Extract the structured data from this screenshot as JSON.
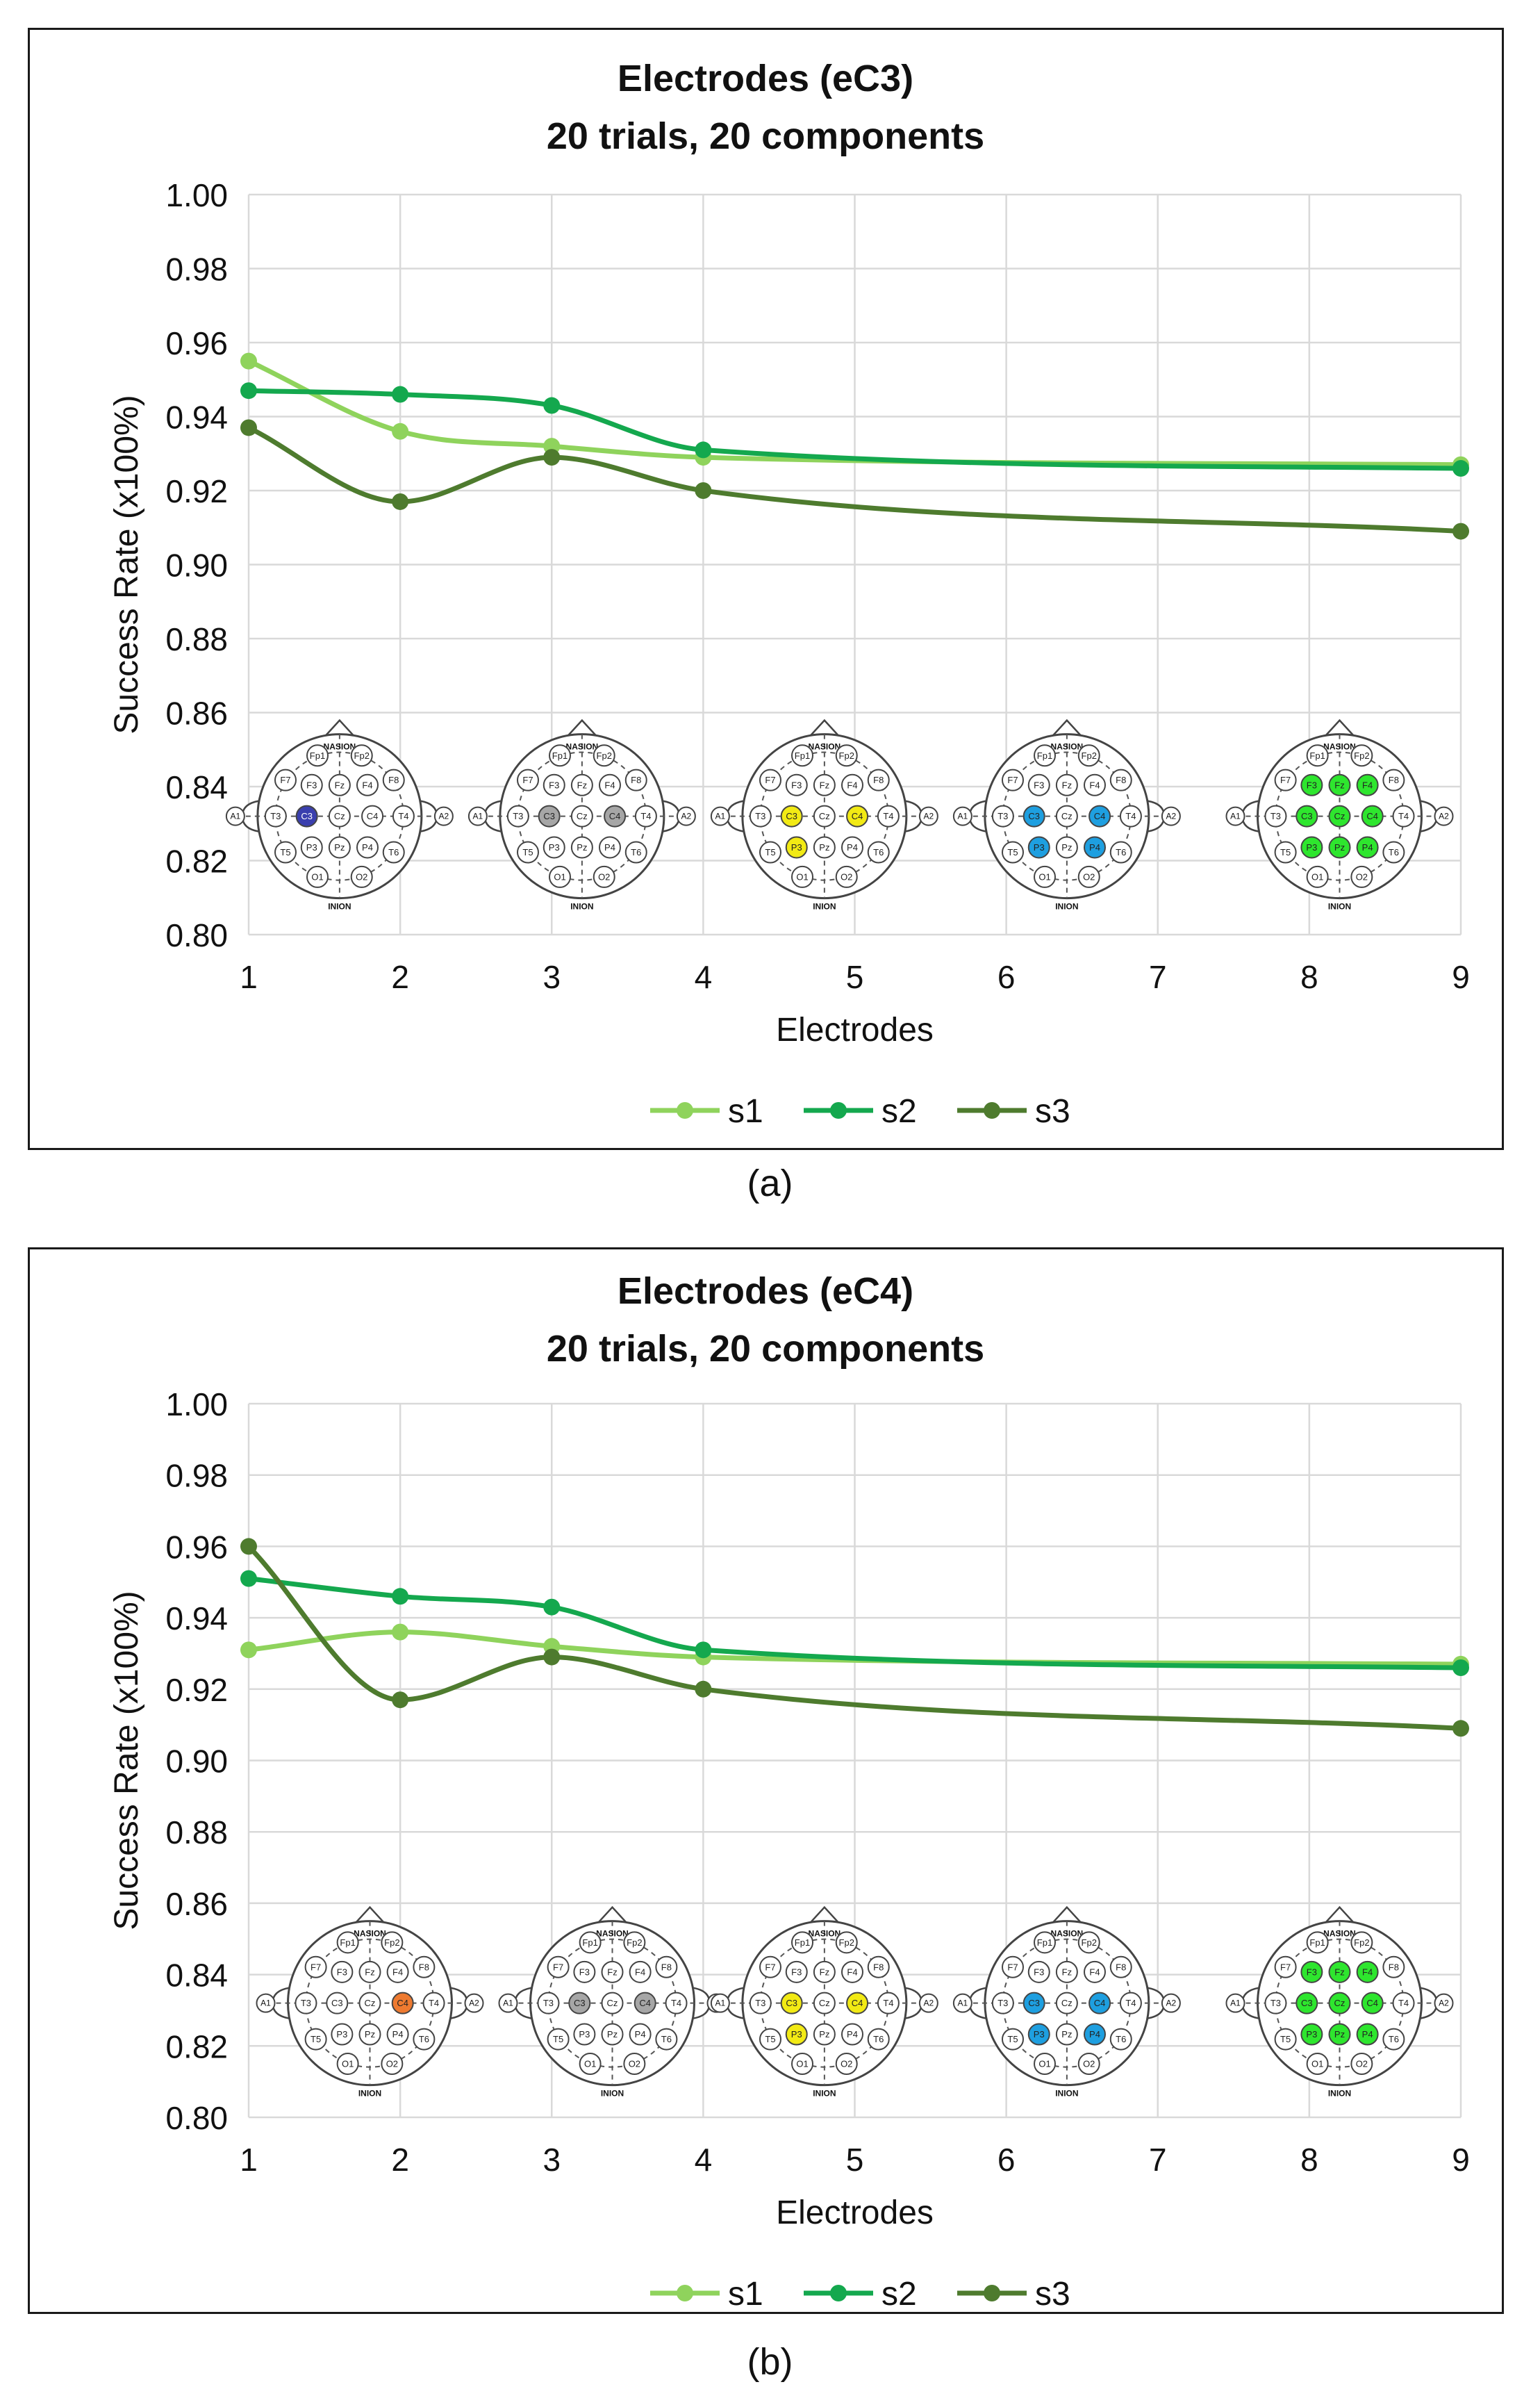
{
  "legend_colors": {
    "s1": "#8fd35c",
    "s2": "#14a84e",
    "s3": "#4e7b2e"
  },
  "electrode_colors": [
    "#3a3fae",
    "#a6a6a6",
    "#f2ea14",
    "#1e9fe0",
    "#2ee62e",
    "#ee7a30"
  ],
  "head_labels": {
    "top": "NASION",
    "bottom": "INION",
    "sites": [
      "Fp1",
      "Fp2",
      "F7",
      "F3",
      "Fz",
      "F4",
      "F8",
      "A1",
      "T3",
      "C3",
      "Cz",
      "C4",
      "T4",
      "A2",
      "T5",
      "P3",
      "Pz",
      "P4",
      "T6",
      "O1",
      "O2"
    ]
  },
  "chart_data": [
    {
      "type": "line",
      "title": "Electrodes (eC3)",
      "subtitle": "20 trials, 20 components",
      "xlabel": "Electrodes",
      "ylabel": "Success Rate (x100%)",
      "caption": "(a)",
      "x_ticks": [
        "1",
        "2",
        "3",
        "4",
        "5",
        "6",
        "7",
        "8",
        "9"
      ],
      "xlim": [
        1,
        9
      ],
      "ylim": [
        0.8,
        1.0
      ],
      "y_ticks": [
        "0.80",
        "0.82",
        "0.84",
        "0.86",
        "0.88",
        "0.90",
        "0.92",
        "0.94",
        "0.96",
        "0.98",
        "1.00"
      ],
      "grid": true,
      "legend_position": "bottom",
      "series": [
        {
          "name": "s1",
          "x": [
            1,
            2,
            3,
            4,
            9
          ],
          "values": [
            0.955,
            0.936,
            0.932,
            0.929,
            0.927
          ]
        },
        {
          "name": "s2",
          "x": [
            1,
            2,
            3,
            4,
            9
          ],
          "values": [
            0.947,
            0.946,
            0.943,
            0.931,
            0.926
          ]
        },
        {
          "name": "s3",
          "x": [
            1,
            2,
            3,
            4,
            9
          ],
          "values": [
            0.937,
            0.917,
            0.929,
            0.92,
            0.909
          ]
        }
      ],
      "head_diagrams": [
        {
          "x": 1.6,
          "highlight": [
            "C3"
          ],
          "color": "#3a3fae"
        },
        {
          "x": 3.2,
          "highlight": [
            "C3",
            "C4"
          ],
          "color": "#a6a6a6"
        },
        {
          "x": 4.8,
          "highlight": [
            "C3",
            "C4",
            "P3"
          ],
          "color": "#f2ea14"
        },
        {
          "x": 6.4,
          "highlight": [
            "C3",
            "C4",
            "P3",
            "P4"
          ],
          "color": "#1e9fe0"
        },
        {
          "x": 8.2,
          "highlight": [
            "F3",
            "Fz",
            "F4",
            "C3",
            "Cz",
            "C4",
            "P3",
            "Pz",
            "P4"
          ],
          "color": "#2ee62e"
        }
      ]
    },
    {
      "type": "line",
      "title": "Electrodes (eC4)",
      "subtitle": "20 trials, 20 components",
      "xlabel": "Electrodes",
      "ylabel": "Success Rate (x100%)",
      "caption": "(b)",
      "x_ticks": [
        "1",
        "2",
        "3",
        "4",
        "5",
        "6",
        "7",
        "8",
        "9"
      ],
      "xlim": [
        1,
        9
      ],
      "ylim": [
        0.8,
        1.0
      ],
      "y_ticks": [
        "0.80",
        "0.82",
        "0.84",
        "0.86",
        "0.88",
        "0.90",
        "0.92",
        "0.94",
        "0.96",
        "0.98",
        "1.00"
      ],
      "grid": true,
      "legend_position": "bottom",
      "series": [
        {
          "name": "s1",
          "x": [
            1,
            2,
            3,
            4,
            9
          ],
          "values": [
            0.931,
            0.936,
            0.932,
            0.929,
            0.927
          ]
        },
        {
          "name": "s2",
          "x": [
            1,
            2,
            3,
            4,
            9
          ],
          "values": [
            0.951,
            0.946,
            0.943,
            0.931,
            0.926
          ]
        },
        {
          "name": "s3",
          "x": [
            1,
            2,
            3,
            4,
            9
          ],
          "values": [
            0.96,
            0.917,
            0.929,
            0.92,
            0.909
          ]
        }
      ],
      "head_diagrams": [
        {
          "x": 1.8,
          "highlight": [
            "C4"
          ],
          "color": "#ee7a30"
        },
        {
          "x": 3.4,
          "highlight": [
            "C3",
            "C4"
          ],
          "color": "#a6a6a6"
        },
        {
          "x": 4.8,
          "highlight": [
            "C3",
            "C4",
            "P3"
          ],
          "color": "#f2ea14"
        },
        {
          "x": 6.4,
          "highlight": [
            "C3",
            "C4",
            "P3",
            "P4"
          ],
          "color": "#1e9fe0"
        },
        {
          "x": 8.2,
          "highlight": [
            "F3",
            "Fz",
            "F4",
            "C3",
            "Cz",
            "C4",
            "P3",
            "Pz",
            "P4"
          ],
          "color": "#2ee62e"
        }
      ]
    }
  ]
}
